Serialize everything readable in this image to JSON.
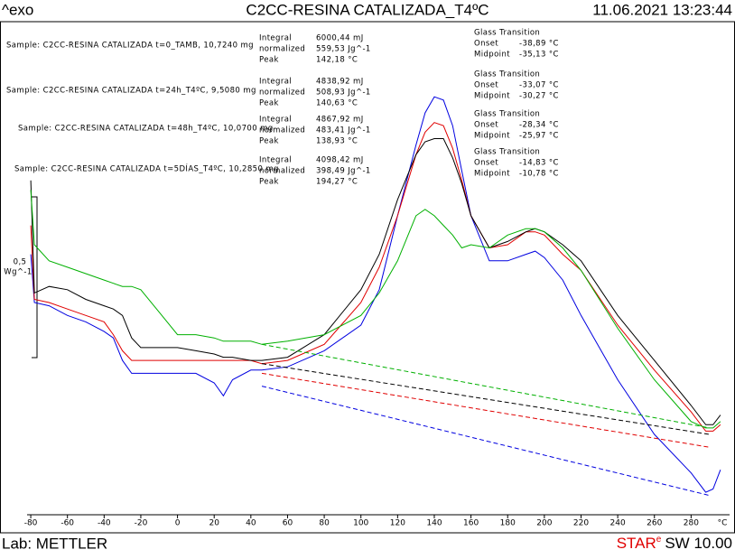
{
  "chart_data": {
    "type": "line",
    "header_left": "^exo",
    "title": "C2CC-RESINA CATALIZADA_T4ºC",
    "timestamp": "11.06.2021 13:23:44",
    "footer_left": "Lab: METTLER",
    "software": "STAR",
    "software_sup": "e",
    "software_version": "SW 10.00",
    "xlabel": "°C",
    "xlim": [
      -82,
      300
    ],
    "xticks": [
      -80,
      -60,
      -40,
      -20,
      0,
      20,
      40,
      60,
      80,
      100,
      120,
      140,
      160,
      180,
      200,
      220,
      240,
      260,
      280
    ],
    "ylim": [
      0,
      1.5
    ],
    "scale_bar": {
      "size": {
        "value": 0.5,
        "label": "0,5"
      },
      "unit": "Wg^-1"
    },
    "x": [
      -80,
      -78,
      -70,
      -60,
      -50,
      -40,
      -35,
      -30,
      -25,
      -20,
      -10,
      0,
      10,
      20,
      25,
      30,
      40,
      46,
      60,
      80,
      100,
      110,
      120,
      130,
      135,
      140,
      145,
      150,
      155,
      160,
      170,
      180,
      190,
      195,
      200,
      210,
      220,
      240,
      260,
      280,
      288,
      292,
      296
    ],
    "series": [
      {
        "name": "Sample: C2CC-RESINA CATALIZADA t=0_TAMB, 10,7240 mg",
        "color": "#0000e0",
        "values": [
          0.81,
          0.66,
          0.65,
          0.62,
          0.6,
          0.57,
          0.55,
          0.48,
          0.44,
          0.44,
          0.44,
          0.44,
          0.44,
          0.41,
          0.37,
          0.42,
          0.45,
          0.45,
          0.46,
          0.51,
          0.59,
          0.7,
          0.93,
          1.15,
          1.25,
          1.3,
          1.29,
          1.21,
          1.07,
          0.93,
          0.79,
          0.79,
          0.81,
          0.82,
          0.8,
          0.73,
          0.62,
          0.42,
          0.25,
          0.13,
          0.07,
          0.08,
          0.14
        ],
        "baseline": {
          "x": [
            46,
            290
          ],
          "values": [
            0.4,
            0.06
          ]
        },
        "results": [
          [
            "Integral",
            "6000,44 mJ"
          ],
          [
            "normalized",
            "559,53 Jg^-1"
          ],
          [
            "Peak",
            "142,18 °C"
          ]
        ],
        "glass_transition": {
          "title": "Glass Transition",
          "rows": [
            [
              "Onset",
              "-38,89 °C"
            ],
            [
              "Midpoint",
              "-35,13 °C"
            ]
          ]
        }
      },
      {
        "name": "Sample: C2CC-RESINA CATALIZADA t=24h_T4ºC, 9,5080 mg",
        "color": "#e00000",
        "values": [
          0.9,
          0.67,
          0.66,
          0.64,
          0.62,
          0.6,
          0.56,
          0.51,
          0.48,
          0.48,
          0.48,
          0.48,
          0.48,
          0.48,
          0.48,
          0.48,
          0.48,
          0.47,
          0.48,
          0.53,
          0.66,
          0.77,
          0.93,
          1.12,
          1.19,
          1.22,
          1.21,
          1.14,
          1.04,
          0.93,
          0.83,
          0.84,
          0.88,
          0.88,
          0.87,
          0.81,
          0.76,
          0.59,
          0.45,
          0.32,
          0.26,
          0.26,
          0.28
        ],
        "baseline": {
          "x": [
            46,
            290
          ],
          "values": [
            0.44,
            0.21
          ]
        },
        "results": [
          [
            "Integral",
            "4838,92 mJ"
          ],
          [
            "normalized",
            "508,93 Jg^-1"
          ],
          [
            "Peak",
            "140,63 °C"
          ]
        ],
        "glass_transition": {
          "title": "Glass Transition",
          "rows": [
            [
              "Onset",
              "-33,07 °C"
            ],
            [
              "Midpoint",
              "-30,27 °C"
            ]
          ]
        }
      },
      {
        "name": "Sample: C2CC-RESINA CATALIZADA t=48h_T4ºC, 10,0700 mg",
        "color": "#000000",
        "values": [
          1.04,
          0.69,
          0.71,
          0.7,
          0.67,
          0.65,
          0.64,
          0.62,
          0.55,
          0.52,
          0.52,
          0.52,
          0.51,
          0.5,
          0.49,
          0.49,
          0.48,
          0.48,
          0.49,
          0.56,
          0.7,
          0.81,
          0.98,
          1.12,
          1.16,
          1.17,
          1.17,
          1.11,
          1.03,
          0.93,
          0.83,
          0.85,
          0.88,
          0.89,
          0.88,
          0.84,
          0.79,
          0.62,
          0.48,
          0.34,
          0.28,
          0.28,
          0.31
        ],
        "baseline": {
          "x": [
            46,
            290
          ],
          "values": [
            0.47,
            0.25
          ]
        },
        "results": [
          [
            "Integral",
            "4867,92 mJ"
          ],
          [
            "normalized",
            "483,41 Jg^-1"
          ],
          [
            "Peak",
            "138,93 °C"
          ]
        ],
        "glass_transition": {
          "title": "Glass Transition",
          "rows": [
            [
              "Onset",
              "-28,34 °C"
            ],
            [
              "Midpoint",
              "-25,97 °C"
            ]
          ]
        }
      },
      {
        "name": "Sample: C2CC-RESINA CATALIZADA t=5DÍAS_T4ºC, 10,2850 mg",
        "color": "#00b000",
        "values": [
          1.01,
          0.84,
          0.79,
          0.77,
          0.75,
          0.73,
          0.72,
          0.71,
          0.71,
          0.7,
          0.63,
          0.56,
          0.56,
          0.55,
          0.54,
          0.54,
          0.54,
          0.53,
          0.54,
          0.56,
          0.62,
          0.69,
          0.79,
          0.93,
          0.95,
          0.93,
          0.9,
          0.87,
          0.83,
          0.84,
          0.83,
          0.87,
          0.89,
          0.89,
          0.88,
          0.83,
          0.76,
          0.58,
          0.42,
          0.29,
          0.27,
          0.27,
          0.29
        ],
        "baseline": {
          "x": [
            46,
            290
          ],
          "values": [
            0.53,
            0.27
          ]
        },
        "results": [
          [
            "Integral",
            "4098,42 mJ"
          ],
          [
            "normalized",
            "398,49 Jg^-1"
          ],
          [
            "Peak",
            "194,27 °C"
          ]
        ],
        "glass_transition": {
          "title": "Glass Transition",
          "rows": [
            [
              "Onset",
              "-14,83 °C"
            ],
            [
              "Midpoint",
              "-10,78 °C"
            ]
          ]
        }
      }
    ]
  }
}
